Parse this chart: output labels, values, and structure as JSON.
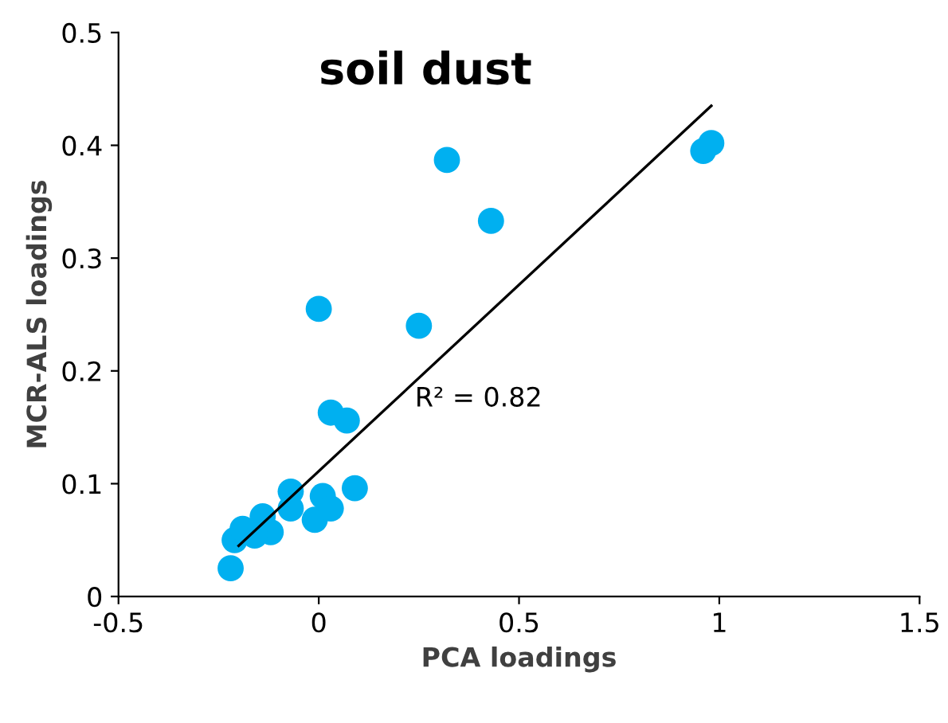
{
  "chart_data": {
    "type": "scatter",
    "title": "soil dust",
    "xlabel": "PCA loadings",
    "ylabel": "MCR-ALS loadings",
    "xlim": [
      -0.5,
      1.5
    ],
    "xticks": [
      -0.5,
      0,
      0.5,
      1,
      1.5
    ],
    "ylim": [
      0,
      0.5
    ],
    "yticks": [
      0,
      0.1,
      0.2,
      0.3,
      0.4,
      0.5
    ],
    "grid": false,
    "legend": false,
    "marker": "circle",
    "annotations": [
      "R² = 0.82"
    ],
    "series": [
      {
        "color": "#00b0f0",
        "x": [
          0.32,
          0.43,
          0.25,
          0.96,
          0.98,
          0.0,
          0.03,
          0.07,
          0.09,
          -0.07,
          0.01,
          -0.01,
          0.03,
          -0.14,
          -0.12,
          -0.16,
          -0.21,
          -0.22,
          -0.07,
          -0.19
        ],
        "values": [
          0.387,
          0.333,
          0.24,
          0.395,
          0.402,
          0.255,
          0.163,
          0.156,
          0.096,
          0.093,
          0.089,
          0.068,
          0.078,
          0.071,
          0.057,
          0.054,
          0.05,
          0.025,
          0.078,
          0.06
        ]
      },
      {
        "type": "line",
        "color": "#000000",
        "x": [
          -0.2,
          0.98
        ],
        "values": [
          0.045,
          0.435
        ],
        "marker": "none",
        "line_style": "solid"
      }
    ]
  }
}
